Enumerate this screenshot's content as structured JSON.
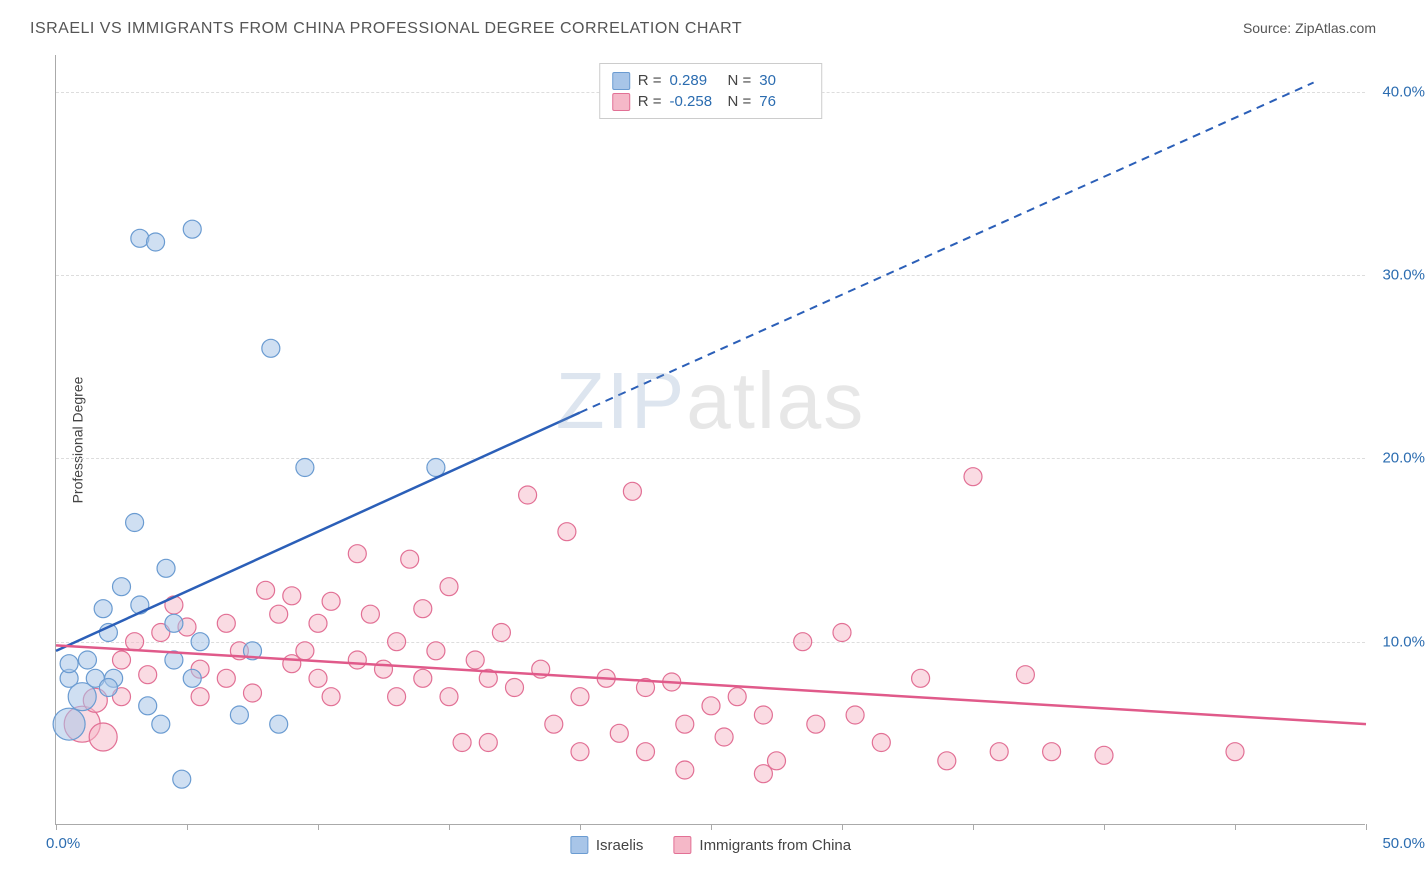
{
  "title": "ISRAELI VS IMMIGRANTS FROM CHINA PROFESSIONAL DEGREE CORRELATION CHART",
  "source_label": "Source:",
  "source_name": "ZipAtlas.com",
  "y_axis_title": "Professional Degree",
  "watermark": {
    "part1": "ZIP",
    "part2": "atlas"
  },
  "chart": {
    "type": "scatter",
    "xlim": [
      0,
      50
    ],
    "ylim": [
      0,
      42
    ],
    "x_tick_positions": [
      0,
      5,
      10,
      15,
      20,
      25,
      30,
      35,
      40,
      45,
      50
    ],
    "x_tick_labels": {
      "first": "0.0%",
      "last": "50.0%"
    },
    "y_gridlines": [
      10,
      20,
      30,
      40
    ],
    "y_tick_labels": [
      "10.0%",
      "20.0%",
      "30.0%",
      "40.0%"
    ],
    "background_color": "#ffffff",
    "grid_color": "#dddddd",
    "axis_color": "#aaaaaa",
    "tick_label_color": "#2b6cb0",
    "tick_label_fontsize": 15,
    "title_fontsize": 16,
    "title_color": "#555555",
    "series": [
      {
        "name": "Israelis",
        "display_label": "Israelis",
        "fill_color": "#a8c5e8",
        "stroke_color": "#6a9bd1",
        "fill_opacity": 0.55,
        "marker_r": 9,
        "trend_color": "#2b5fb8",
        "trend_width": 2.5,
        "trend_solid": {
          "x1": 0,
          "y1": 9.5,
          "x2": 20,
          "y2": 22.5
        },
        "trend_dashed": {
          "x1": 20,
          "y1": 22.5,
          "x2": 48,
          "y2": 40.5
        },
        "trend_dash_pattern": "8 6",
        "R": "0.289",
        "N": "30",
        "points": [
          {
            "x": 0.5,
            "y": 8.0,
            "r": 9
          },
          {
            "x": 0.5,
            "y": 8.8,
            "r": 9
          },
          {
            "x": 1.0,
            "y": 7.0,
            "r": 14
          },
          {
            "x": 0.5,
            "y": 5.5,
            "r": 16
          },
          {
            "x": 1.5,
            "y": 8.0,
            "r": 9
          },
          {
            "x": 1.2,
            "y": 9.0,
            "r": 9
          },
          {
            "x": 1.8,
            "y": 11.8,
            "r": 9
          },
          {
            "x": 2.0,
            "y": 10.5,
            "r": 9
          },
          {
            "x": 2.2,
            "y": 8.0,
            "r": 9
          },
          {
            "x": 3.0,
            "y": 16.5,
            "r": 9
          },
          {
            "x": 3.2,
            "y": 12.0,
            "r": 9
          },
          {
            "x": 3.2,
            "y": 32.0,
            "r": 9
          },
          {
            "x": 2.5,
            "y": 13.0,
            "r": 9
          },
          {
            "x": 3.8,
            "y": 31.8,
            "r": 9
          },
          {
            "x": 4.2,
            "y": 14.0,
            "r": 9
          },
          {
            "x": 4.5,
            "y": 11.0,
            "r": 9
          },
          {
            "x": 4.5,
            "y": 9.0,
            "r": 9
          },
          {
            "x": 4.0,
            "y": 5.5,
            "r": 9
          },
          {
            "x": 5.2,
            "y": 32.5,
            "r": 9
          },
          {
            "x": 5.5,
            "y": 10.0,
            "r": 9
          },
          {
            "x": 5.2,
            "y": 8.0,
            "r": 9
          },
          {
            "x": 4.8,
            "y": 2.5,
            "r": 9
          },
          {
            "x": 7.0,
            "y": 6.0,
            "r": 9
          },
          {
            "x": 7.5,
            "y": 9.5,
            "r": 9
          },
          {
            "x": 8.2,
            "y": 26.0,
            "r": 9
          },
          {
            "x": 8.5,
            "y": 5.5,
            "r": 9
          },
          {
            "x": 9.5,
            "y": 19.5,
            "r": 9
          },
          {
            "x": 3.5,
            "y": 6.5,
            "r": 9
          },
          {
            "x": 2.0,
            "y": 7.5,
            "r": 9
          },
          {
            "x": 14.5,
            "y": 19.5,
            "r": 9
          }
        ]
      },
      {
        "name": "Immigrants from China",
        "display_label": "Immigrants from China",
        "fill_color": "#f5b8c8",
        "stroke_color": "#e27095",
        "fill_opacity": 0.5,
        "marker_r": 9,
        "trend_color": "#e05a8a",
        "trend_width": 2.5,
        "trend_solid": {
          "x1": 0,
          "y1": 9.8,
          "x2": 50,
          "y2": 5.5
        },
        "trend_dashed": null,
        "R": "-0.258",
        "N": "76",
        "points": [
          {
            "x": 1.0,
            "y": 5.5,
            "r": 18
          },
          {
            "x": 1.5,
            "y": 6.8,
            "r": 12
          },
          {
            "x": 1.8,
            "y": 4.8,
            "r": 14
          },
          {
            "x": 2.5,
            "y": 9.0,
            "r": 9
          },
          {
            "x": 2.5,
            "y": 7.0,
            "r": 9
          },
          {
            "x": 3.0,
            "y": 10.0,
            "r": 9
          },
          {
            "x": 3.5,
            "y": 8.2,
            "r": 9
          },
          {
            "x": 4.0,
            "y": 10.5,
            "r": 9
          },
          {
            "x": 4.5,
            "y": 12.0,
            "r": 9
          },
          {
            "x": 5.0,
            "y": 10.8,
            "r": 9
          },
          {
            "x": 5.5,
            "y": 8.5,
            "r": 9
          },
          {
            "x": 5.5,
            "y": 7.0,
            "r": 9
          },
          {
            "x": 6.5,
            "y": 11.0,
            "r": 9
          },
          {
            "x": 6.5,
            "y": 8.0,
            "r": 9
          },
          {
            "x": 7.0,
            "y": 9.5,
            "r": 9
          },
          {
            "x": 7.5,
            "y": 7.2,
            "r": 9
          },
          {
            "x": 8.0,
            "y": 12.8,
            "r": 9
          },
          {
            "x": 8.5,
            "y": 11.5,
            "r": 9
          },
          {
            "x": 9.0,
            "y": 12.5,
            "r": 9
          },
          {
            "x": 9.0,
            "y": 8.8,
            "r": 9
          },
          {
            "x": 9.5,
            "y": 9.5,
            "r": 9
          },
          {
            "x": 10.0,
            "y": 11.0,
            "r": 9
          },
          {
            "x": 10.0,
            "y": 8.0,
            "r": 9
          },
          {
            "x": 10.5,
            "y": 12.2,
            "r": 9
          },
          {
            "x": 10.5,
            "y": 7.0,
            "r": 9
          },
          {
            "x": 11.5,
            "y": 9.0,
            "r": 9
          },
          {
            "x": 11.5,
            "y": 14.8,
            "r": 9
          },
          {
            "x": 12.0,
            "y": 11.5,
            "r": 9
          },
          {
            "x": 12.5,
            "y": 8.5,
            "r": 9
          },
          {
            "x": 13.0,
            "y": 10.0,
            "r": 9
          },
          {
            "x": 13.0,
            "y": 7.0,
            "r": 9
          },
          {
            "x": 13.5,
            "y": 14.5,
            "r": 9
          },
          {
            "x": 14.0,
            "y": 11.8,
            "r": 9
          },
          {
            "x": 14.0,
            "y": 8.0,
            "r": 9
          },
          {
            "x": 14.5,
            "y": 9.5,
            "r": 9
          },
          {
            "x": 15.0,
            "y": 13.0,
            "r": 9
          },
          {
            "x": 15.0,
            "y": 7.0,
            "r": 9
          },
          {
            "x": 15.5,
            "y": 4.5,
            "r": 9
          },
          {
            "x": 16.0,
            "y": 9.0,
            "r": 9
          },
          {
            "x": 16.5,
            "y": 8.0,
            "r": 9
          },
          {
            "x": 16.5,
            "y": 4.5,
            "r": 9
          },
          {
            "x": 17.0,
            "y": 10.5,
            "r": 9
          },
          {
            "x": 17.5,
            "y": 7.5,
            "r": 9
          },
          {
            "x": 18.0,
            "y": 18.0,
            "r": 9
          },
          {
            "x": 18.5,
            "y": 8.5,
            "r": 9
          },
          {
            "x": 19.0,
            "y": 5.5,
            "r": 9
          },
          {
            "x": 19.5,
            "y": 16.0,
            "r": 9
          },
          {
            "x": 20.0,
            "y": 7.0,
            "r": 9
          },
          {
            "x": 20.0,
            "y": 4.0,
            "r": 9
          },
          {
            "x": 21.0,
            "y": 8.0,
            "r": 9
          },
          {
            "x": 21.5,
            "y": 5.0,
            "r": 9
          },
          {
            "x": 22.0,
            "y": 18.2,
            "r": 9
          },
          {
            "x": 22.5,
            "y": 7.5,
            "r": 9
          },
          {
            "x": 22.5,
            "y": 4.0,
            "r": 9
          },
          {
            "x": 23.5,
            "y": 7.8,
            "r": 9
          },
          {
            "x": 24.0,
            "y": 5.5,
            "r": 9
          },
          {
            "x": 24.0,
            "y": 3.0,
            "r": 9
          },
          {
            "x": 25.0,
            "y": 6.5,
            "r": 9
          },
          {
            "x": 25.5,
            "y": 4.8,
            "r": 9
          },
          {
            "x": 26.0,
            "y": 7.0,
            "r": 9
          },
          {
            "x": 27.0,
            "y": 6.0,
            "r": 9
          },
          {
            "x": 27.5,
            "y": 3.5,
            "r": 9
          },
          {
            "x": 28.5,
            "y": 10.0,
            "r": 9
          },
          {
            "x": 29.0,
            "y": 5.5,
            "r": 9
          },
          {
            "x": 30.0,
            "y": 10.5,
            "r": 9
          },
          {
            "x": 30.5,
            "y": 6.0,
            "r": 9
          },
          {
            "x": 31.5,
            "y": 4.5,
            "r": 9
          },
          {
            "x": 33.0,
            "y": 8.0,
            "r": 9
          },
          {
            "x": 34.0,
            "y": 3.5,
            "r": 9
          },
          {
            "x": 35.0,
            "y": 19.0,
            "r": 9
          },
          {
            "x": 36.0,
            "y": 4.0,
            "r": 9
          },
          {
            "x": 37.0,
            "y": 8.2,
            "r": 9
          },
          {
            "x": 38.0,
            "y": 4.0,
            "r": 9
          },
          {
            "x": 40.0,
            "y": 3.8,
            "r": 9
          },
          {
            "x": 45.0,
            "y": 4.0,
            "r": 9
          },
          {
            "x": 27.0,
            "y": 2.8,
            "r": 9
          }
        ]
      }
    ]
  },
  "corr_legend": {
    "r_label": "R =",
    "n_label": "N ="
  },
  "bottom_legend": {
    "items": [
      {
        "label": "Israelis",
        "series_idx": 0
      },
      {
        "label": "Immigrants from China",
        "series_idx": 1
      }
    ]
  }
}
